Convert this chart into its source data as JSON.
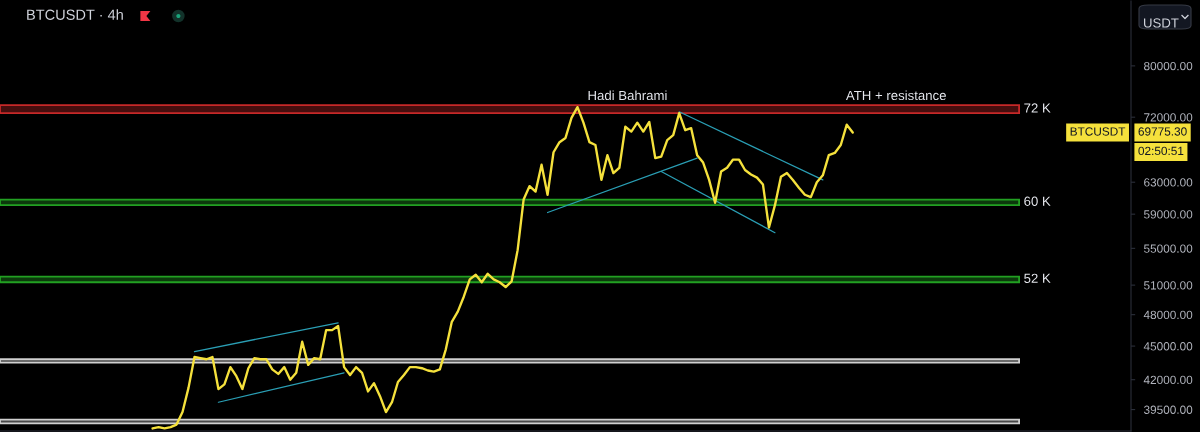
{
  "chart_data": {
    "type": "line",
    "title": "BTCUSDT · 4h",
    "ylabel": "USDT",
    "log": true,
    "tick_labels": "y",
    "ylim": [
      37800,
      91400
    ],
    "yticks": [
      {
        "value": 39500,
        "label": "39500.00"
      },
      {
        "value": 42000,
        "label": "42000.00"
      },
      {
        "value": 45000,
        "label": "45000.00"
      },
      {
        "value": 48000,
        "label": "48000.00"
      },
      {
        "value": 51000,
        "label": "51000.00"
      },
      {
        "value": 55000,
        "label": "55000.00"
      },
      {
        "value": 59000,
        "label": "59000.00"
      },
      {
        "value": 63000,
        "label": "63000.00"
      },
      {
        "value": 72000,
        "label": "72000.00"
      },
      {
        "value": 80000,
        "label": "80000.00"
      }
    ],
    "categories": [
      null,
      null,
      null,
      null,
      null,
      null,
      null,
      null,
      null,
      null,
      null,
      null,
      null,
      null,
      null,
      null,
      null,
      null,
      null,
      null,
      null,
      null,
      null,
      null,
      null,
      null,
      null,
      null,
      null,
      null,
      null,
      null,
      null,
      null,
      null,
      null,
      null,
      null,
      null,
      null,
      null,
      null,
      null,
      null,
      null,
      null,
      null,
      null,
      null,
      null,
      null,
      null,
      null,
      null,
      null,
      null,
      null,
      null,
      null,
      null,
      null,
      null,
      null,
      null,
      null,
      null,
      null,
      null,
      null,
      null,
      null,
      null,
      null,
      null,
      null,
      null,
      null,
      null,
      null,
      null,
      null,
      null,
      null,
      null,
      null,
      null,
      null,
      null,
      null,
      null,
      null,
      null,
      null,
      null,
      null,
      null,
      null,
      null,
      null,
      null,
      null,
      null,
      null,
      null,
      null,
      null,
      null,
      null,
      null,
      null,
      null,
      null,
      null,
      null,
      null,
      null,
      null,
      null,
      null,
      null,
      null,
      null,
      null,
      null,
      null,
      null,
      null,
      null,
      null,
      null,
      null,
      null,
      null,
      null,
      null,
      null,
      null,
      null,
      null,
      null,
      null,
      null,
      null,
      null,
      null,
      null,
      null,
      null,
      null,
      null,
      null,
      null,
      null,
      null,
      null,
      null,
      null,
      null,
      null,
      null,
      null,
      null,
      null,
      null,
      null,
      null,
      null,
      null,
      null,
      null,
      null,
      null,
      null,
      null,
      null,
      null,
      null,
      null,
      null,
      null,
      null,
      null,
      null,
      null,
      null,
      null,
      null,
      null,
      null
    ],
    "series": [
      {
        "name": "BTCUSDT",
        "color": "#f5e13c",
        "values": [
          null,
          null,
          null,
          null,
          null,
          null,
          null,
          null,
          null,
          null,
          null,
          null,
          null,
          null,
          null,
          null,
          null,
          null,
          null,
          null,
          null,
          null,
          null,
          null,
          null,
          38000,
          38100,
          38000,
          38100,
          38300,
          39300,
          41300,
          44000,
          43900,
          43800,
          44000,
          41200,
          41600,
          43100,
          42300,
          41200,
          43000,
          43900,
          43800,
          43800,
          42900,
          42500,
          43100,
          42000,
          42600,
          45400,
          43300,
          43900,
          43800,
          46500,
          46500,
          46900,
          43100,
          42400,
          43100,
          42600,
          41000,
          41700,
          40600,
          39300,
          40100,
          41800,
          42400,
          43100,
          43100,
          43000,
          42800,
          42700,
          42900,
          44700,
          47300,
          48300,
          49800,
          51600,
          52100,
          51300,
          52200,
          51600,
          51300,
          50800,
          51400,
          54800,
          60800,
          62500,
          61800,
          65300,
          61400,
          67000,
          68400,
          69000,
          71900,
          73500,
          71200,
          68400,
          68000,
          63300,
          66600,
          64200,
          64900,
          70600,
          69900,
          71200,
          69900,
          71300,
          66200,
          66400,
          68700,
          69400,
          72600,
          70100,
          70400,
          66600,
          65600,
          63300,
          60400,
          64400,
          64900,
          66000,
          66000,
          64600,
          64000,
          63600,
          62700,
          57400,
          60100,
          63700,
          64200,
          63300,
          62300,
          61400,
          61100,
          63000,
          63900,
          66600,
          66900,
          68000,
          70900,
          69775.3,
          null,
          null,
          null,
          null,
          null,
          null,
          null,
          null,
          null,
          null,
          null,
          null,
          null,
          null,
          null,
          null,
          null,
          null,
          null,
          null,
          null,
          null,
          null,
          null,
          null,
          null,
          null,
          null,
          null,
          null,
          null,
          null,
          null,
          null,
          null,
          null,
          null,
          null,
          null,
          null,
          null,
          null,
          null,
          null,
          null,
          null
        ]
      },
      {
        "color": "#2a9fb5",
        "values": [
          null,
          null,
          null,
          null,
          null,
          null,
          null,
          null,
          null,
          null,
          null,
          null,
          null,
          null,
          null,
          null,
          null,
          null,
          null,
          null,
          null,
          null,
          null,
          null,
          null,
          null,
          null,
          null,
          null,
          null,
          null,
          null,
          44500,
          null,
          null,
          null,
          null,
          null,
          null,
          null,
          null,
          null,
          null,
          null,
          null,
          null,
          null,
          null,
          null,
          null,
          null,
          null,
          null,
          null,
          null,
          null,
          47200,
          null,
          null,
          null,
          null,
          null,
          null,
          null,
          null,
          null,
          null,
          null,
          null,
          null,
          null,
          null,
          null,
          null,
          null,
          null,
          null,
          null,
          null,
          null,
          null,
          null,
          null,
          null,
          null,
          null,
          null,
          null,
          null,
          null,
          null,
          null,
          null,
          null,
          null,
          null,
          null,
          null,
          null,
          null,
          null,
          null,
          null,
          null,
          null,
          null,
          null,
          null,
          null,
          null,
          null,
          null,
          null,
          null,
          null,
          null,
          null,
          null,
          null,
          null,
          null,
          null,
          null,
          null,
          null,
          null,
          null,
          null,
          null,
          null,
          null,
          null,
          null,
          null,
          null,
          null,
          null,
          null,
          null,
          null,
          null,
          null,
          null,
          null,
          null,
          null,
          null,
          null,
          null,
          null,
          null,
          null,
          null,
          null,
          null,
          null,
          null,
          null,
          null,
          null,
          null,
          null,
          null,
          null,
          null,
          null,
          null,
          null,
          null,
          null,
          null,
          null,
          null,
          null,
          null,
          null,
          null,
          null,
          null,
          null,
          null,
          null,
          null,
          null,
          null,
          null,
          null,
          null,
          null
        ]
      },
      {
        "color": "#2a9fb5",
        "values": [
          null,
          null,
          null,
          null,
          null,
          null,
          null,
          null,
          null,
          null,
          null,
          null,
          null,
          null,
          null,
          null,
          null,
          null,
          null,
          null,
          null,
          null,
          null,
          null,
          null,
          null,
          null,
          null,
          null,
          null,
          null,
          null,
          null,
          null,
          null,
          null,
          40100,
          null,
          null,
          null,
          null,
          null,
          null,
          null,
          null,
          null,
          null,
          null,
          null,
          null,
          null,
          null,
          null,
          null,
          null,
          null,
          null,
          42600,
          null,
          null,
          null,
          null,
          null,
          null,
          null,
          null,
          null,
          null,
          null,
          null,
          null,
          null,
          null,
          null,
          null,
          null,
          null,
          null,
          null,
          null,
          null,
          null,
          null,
          null,
          null,
          null,
          null,
          null,
          null,
          null,
          null,
          null,
          null,
          null,
          null,
          null,
          null,
          null,
          null,
          null,
          null,
          null,
          null,
          null,
          null,
          null,
          null,
          null,
          null,
          null,
          null,
          null,
          null,
          null,
          null,
          null,
          null,
          null,
          null,
          null,
          null,
          null,
          null,
          null,
          null,
          null,
          null,
          null,
          null,
          null,
          null,
          null,
          null,
          null,
          null,
          null,
          null,
          null,
          null,
          null,
          null,
          null,
          null,
          null,
          null,
          null,
          null,
          null,
          null,
          null,
          null,
          null,
          null,
          null,
          null,
          null,
          null,
          null,
          null,
          null,
          null,
          null,
          null,
          null,
          null,
          null,
          null,
          null,
          null,
          null,
          null,
          null,
          null,
          null,
          null,
          null,
          null,
          null,
          null,
          null,
          null,
          null,
          null,
          null,
          null,
          null,
          null,
          null,
          null
        ]
      },
      {
        "color": "#2a9fb5",
        "values": [
          null,
          null,
          null,
          null,
          null,
          null,
          null,
          null,
          null,
          null,
          null,
          null,
          null,
          null,
          null,
          null,
          null,
          null,
          null,
          null,
          null,
          null,
          null,
          null,
          null,
          null,
          null,
          null,
          null,
          null,
          null,
          null,
          null,
          null,
          null,
          null,
          null,
          null,
          null,
          null,
          null,
          null,
          null,
          null,
          null,
          null,
          null,
          null,
          null,
          null,
          null,
          null,
          null,
          null,
          null,
          null,
          null,
          null,
          null,
          null,
          null,
          null,
          null,
          null,
          null,
          null,
          null,
          null,
          null,
          null,
          null,
          null,
          null,
          null,
          null,
          null,
          null,
          null,
          null,
          null,
          null,
          null,
          null,
          null,
          null,
          null,
          null,
          null,
          null,
          null,
          null,
          59200,
          null,
          null,
          null,
          null,
          null,
          null,
          null,
          null,
          null,
          null,
          null,
          null,
          null,
          null,
          null,
          null,
          null,
          null,
          null,
          null,
          null,
          null,
          null,
          null,
          66200,
          null,
          null,
          null,
          null,
          null,
          null,
          null,
          null,
          null,
          null,
          null,
          null,
          null,
          null,
          null,
          null,
          null,
          null,
          null,
          null,
          null,
          null,
          null,
          null,
          null,
          null,
          null,
          null,
          null,
          null,
          null,
          null,
          null,
          null,
          null,
          null,
          null,
          null,
          null,
          null,
          null,
          null,
          null,
          null,
          null,
          null,
          null,
          null,
          null,
          null,
          null,
          null,
          null,
          null,
          null,
          null,
          null,
          null,
          null,
          null,
          null,
          null,
          null,
          null,
          null,
          null,
          null,
          null,
          null,
          null,
          null,
          null
        ]
      },
      {
        "color": "#2a9fb5",
        "values": [
          null,
          null,
          null,
          null,
          null,
          null,
          null,
          null,
          null,
          null,
          null,
          null,
          null,
          null,
          null,
          null,
          null,
          null,
          null,
          null,
          null,
          null,
          null,
          null,
          null,
          null,
          null,
          null,
          null,
          null,
          null,
          null,
          null,
          null,
          null,
          null,
          null,
          null,
          null,
          null,
          null,
          null,
          null,
          null,
          null,
          null,
          null,
          null,
          null,
          null,
          null,
          null,
          null,
          null,
          null,
          null,
          null,
          null,
          null,
          null,
          null,
          null,
          null,
          null,
          null,
          null,
          null,
          null,
          null,
          null,
          null,
          null,
          null,
          null,
          null,
          null,
          null,
          null,
          null,
          null,
          null,
          null,
          null,
          null,
          null,
          null,
          null,
          null,
          null,
          null,
          null,
          null,
          null,
          null,
          null,
          null,
          null,
          null,
          null,
          null,
          null,
          null,
          null,
          null,
          null,
          null,
          null,
          null,
          null,
          null,
          null,
          null,
          null,
          72800,
          null,
          null,
          null,
          null,
          null,
          null,
          null,
          null,
          null,
          null,
          null,
          null,
          null,
          null,
          null,
          null,
          null,
          null,
          null,
          null,
          null,
          null,
          null,
          63300,
          null,
          null,
          null,
          null,
          null,
          null,
          null,
          null,
          null,
          null,
          null,
          null,
          null,
          null,
          null,
          null,
          null,
          null,
          null,
          null,
          null,
          null,
          null,
          null,
          null,
          null,
          null,
          null,
          null,
          null,
          null,
          null,
          null,
          null,
          null,
          null,
          null,
          null,
          null,
          null,
          null,
          null,
          null,
          null,
          null,
          null,
          null,
          null,
          null,
          null,
          null
        ]
      },
      {
        "color": "#2a9fb5",
        "values": [
          null,
          null,
          null,
          null,
          null,
          null,
          null,
          null,
          null,
          null,
          null,
          null,
          null,
          null,
          null,
          null,
          null,
          null,
          null,
          null,
          null,
          null,
          null,
          null,
          null,
          null,
          null,
          null,
          null,
          null,
          null,
          null,
          null,
          null,
          null,
          null,
          null,
          null,
          null,
          null,
          null,
          null,
          null,
          null,
          null,
          null,
          null,
          null,
          null,
          null,
          null,
          null,
          null,
          null,
          null,
          null,
          null,
          null,
          null,
          null,
          null,
          null,
          null,
          null,
          null,
          null,
          null,
          null,
          null,
          null,
          null,
          null,
          null,
          null,
          null,
          null,
          null,
          null,
          null,
          null,
          null,
          null,
          null,
          null,
          null,
          null,
          null,
          null,
          null,
          null,
          null,
          null,
          null,
          null,
          null,
          null,
          null,
          null,
          null,
          null,
          null,
          null,
          null,
          null,
          null,
          null,
          null,
          null,
          null,
          null,
          64400,
          null,
          null,
          null,
          null,
          null,
          null,
          null,
          null,
          null,
          null,
          null,
          null,
          null,
          null,
          null,
          null,
          null,
          null,
          56800,
          null,
          null,
          null,
          null,
          null,
          null,
          null,
          null,
          null,
          null,
          null,
          null,
          null,
          null,
          null,
          null,
          null,
          null,
          null,
          null,
          null,
          null,
          null,
          null,
          null,
          null,
          null,
          null,
          null,
          null,
          null,
          null,
          null,
          null,
          null,
          null,
          null,
          null,
          null,
          null,
          null,
          null,
          null,
          null,
          null,
          null,
          null,
          null,
          null,
          null,
          null,
          null,
          null,
          null,
          null,
          null,
          null,
          null,
          null
        ]
      }
    ],
    "bands": [
      {
        "axis": "y",
        "from": 72600,
        "to": 73800,
        "label": "72 K",
        "color": "#c62828"
      },
      {
        "axis": "y",
        "from": 60100,
        "to": 60800,
        "label": "60 K",
        "color": "#22a022"
      },
      {
        "axis": "y",
        "from": 51300,
        "to": 51900,
        "label": "52 K",
        "color": "#22a022"
      },
      {
        "axis": "y",
        "from": 43500,
        "to": 43800,
        "color": "#d0d0d0"
      },
      {
        "axis": "y",
        "from": 38400,
        "to": 38700,
        "color": "#d0d0d0"
      }
    ],
    "annotations": [
      "Hadi Bahrami",
      "ATH + resistance",
      "69775.30",
      "02:50:51"
    ]
  }
}
